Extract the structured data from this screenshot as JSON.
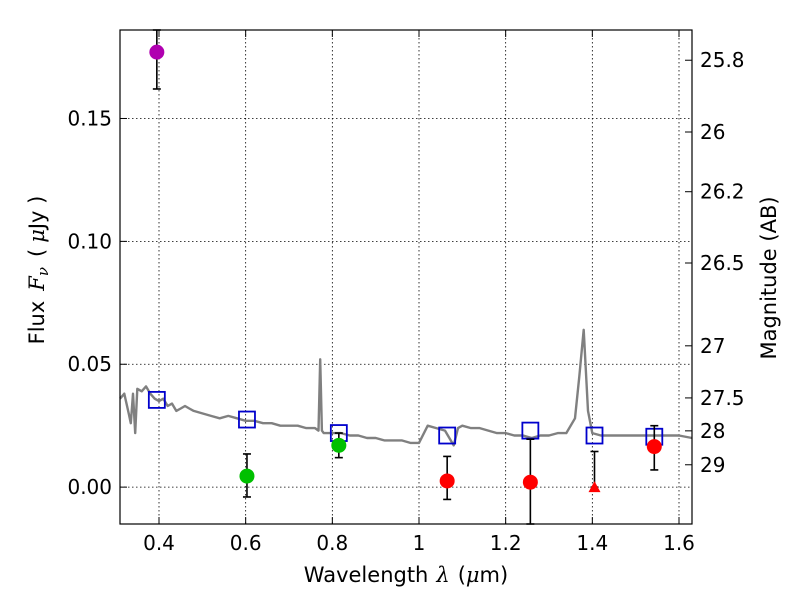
{
  "chart_data": {
    "type": "scatter",
    "xlabel_text": "Wavelength",
    "xlabel_symbol": "λ",
    "xlabel_unit_open": "(",
    "xlabel_unit_mu": "μ",
    "xlabel_unit_rest": "m)",
    "ylabel_text": "Flux",
    "ylabel_symbol": "F",
    "ylabel_subscript": "ν",
    "ylabel_unit_open": "(",
    "ylabel_unit_mu": "μ",
    "ylabel_unit_rest": "Jy )",
    "y2label": "Magnitude (AB)",
    "xlim": [
      0.31,
      1.63
    ],
    "ylim": [
      -0.015,
      0.186
    ],
    "x_ticks": [
      0.4,
      0.6,
      0.8,
      1.0,
      1.2,
      1.4,
      1.6
    ],
    "x_tick_labels": [
      "0.4",
      "0.6",
      "0.8",
      "1",
      "1.2",
      "1.4",
      "1.6"
    ],
    "y_ticks": [
      0.0,
      0.05,
      0.1,
      0.15
    ],
    "y_tick_labels": [
      "0.00",
      "0.05",
      "0.10",
      "0.15"
    ],
    "y2_ticks": [
      {
        "label": "25.8",
        "flux": 0.1737
      },
      {
        "label": "26",
        "flux": 0.1445
      },
      {
        "label": "26.2",
        "flux": 0.1202
      },
      {
        "label": "26.5",
        "flux": 0.0912
      },
      {
        "label": "27",
        "flux": 0.0575
      },
      {
        "label": "27.5",
        "flux": 0.0363
      },
      {
        "label": "28",
        "flux": 0.0229
      },
      {
        "label": "29",
        "flux": 0.0091
      }
    ],
    "grid": true,
    "colors": {
      "model": "#808080",
      "magenta": "#b000b0",
      "green": "#00c000",
      "red": "#ff0000",
      "model_box": "#0000cc",
      "errorbar": "#000000"
    },
    "series": [
      {
        "kind": "line",
        "color_key": "model",
        "x": [
          0.31,
          0.32,
          0.33,
          0.335,
          0.34,
          0.345,
          0.35,
          0.36,
          0.37,
          0.38,
          0.39,
          0.4,
          0.41,
          0.42,
          0.43,
          0.44,
          0.45,
          0.46,
          0.47,
          0.48,
          0.5,
          0.52,
          0.54,
          0.56,
          0.58,
          0.6,
          0.62,
          0.64,
          0.66,
          0.68,
          0.7,
          0.72,
          0.74,
          0.76,
          0.768,
          0.772,
          0.776,
          0.78,
          0.8,
          0.82,
          0.84,
          0.86,
          0.88,
          0.9,
          0.92,
          0.94,
          0.96,
          0.98,
          1.0,
          1.02,
          1.04,
          1.06,
          1.08,
          1.09,
          1.1,
          1.12,
          1.14,
          1.16,
          1.18,
          1.2,
          1.22,
          1.24,
          1.26,
          1.28,
          1.3,
          1.32,
          1.34,
          1.36,
          1.37,
          1.38,
          1.39,
          1.4,
          1.42,
          1.44,
          1.46,
          1.48,
          1.5,
          1.52,
          1.54,
          1.56,
          1.58,
          1.6,
          1.63
        ],
        "y": [
          0.036,
          0.038,
          0.03,
          0.026,
          0.038,
          0.022,
          0.04,
          0.039,
          0.041,
          0.038,
          0.036,
          0.035,
          0.036,
          0.033,
          0.034,
          0.031,
          0.032,
          0.033,
          0.032,
          0.031,
          0.03,
          0.029,
          0.028,
          0.029,
          0.028,
          0.027,
          0.027,
          0.026,
          0.026,
          0.025,
          0.025,
          0.025,
          0.024,
          0.024,
          0.023,
          0.052,
          0.023,
          0.022,
          0.022,
          0.022,
          0.021,
          0.021,
          0.02,
          0.02,
          0.019,
          0.019,
          0.019,
          0.018,
          0.018,
          0.025,
          0.024,
          0.023,
          0.017,
          0.024,
          0.025,
          0.024,
          0.024,
          0.023,
          0.022,
          0.022,
          0.021,
          0.021,
          0.02,
          0.021,
          0.021,
          0.022,
          0.022,
          0.028,
          0.045,
          0.064,
          0.031,
          0.022,
          0.021,
          0.021,
          0.021,
          0.021,
          0.021,
          0.021,
          0.021,
          0.021,
          0.021,
          0.021,
          0.02
        ]
      },
      {
        "kind": "boxes",
        "color_key": "model_box",
        "x": [
          0.395,
          0.603,
          0.815,
          1.065,
          1.257,
          1.405,
          1.543
        ],
        "y": [
          0.0355,
          0.0275,
          0.022,
          0.021,
          0.023,
          0.021,
          0.0205
        ]
      },
      {
        "kind": "points",
        "color_key": "magenta",
        "x": [
          0.395
        ],
        "y": [
          0.177
        ],
        "yerr_low": [
          0.162
        ],
        "yerr_high": [
          0.186
        ]
      },
      {
        "kind": "points",
        "color_key": "green",
        "x": [
          0.603,
          0.815
        ],
        "y": [
          0.0045,
          0.017
        ],
        "yerr_low": [
          -0.004,
          0.012
        ],
        "yerr_high": [
          0.0135,
          0.022
        ]
      },
      {
        "kind": "points",
        "color_key": "red",
        "x": [
          1.065,
          1.257,
          1.543
        ],
        "y": [
          0.0025,
          0.002,
          0.0165
        ],
        "yerr_low": [
          -0.005,
          -0.015,
          0.007
        ],
        "yerr_high": [
          0.0125,
          0.0195,
          0.025
        ]
      },
      {
        "kind": "upper_limit",
        "color_key": "red",
        "x": [
          1.405
        ],
        "y": [
          0.0
        ],
        "yerr_low": [
          0.0
        ],
        "yerr_high": [
          0.0145
        ]
      }
    ]
  }
}
